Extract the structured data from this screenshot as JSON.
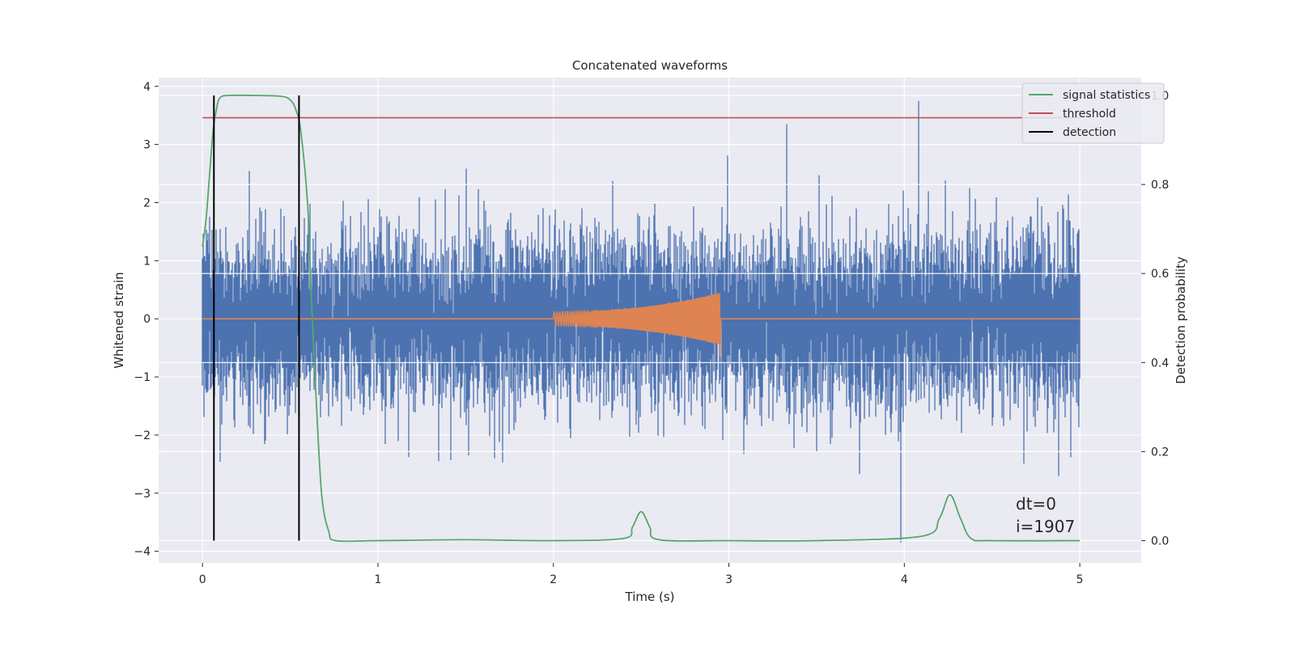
{
  "chart_data": {
    "type": "line",
    "title": "Concatenated waveforms",
    "xlabel": "Time (s)",
    "ylabel_left": "Whitened strain",
    "ylabel_right": "Detection probability",
    "xlim": [
      -0.25,
      5.35
    ],
    "ylim_left": [
      -4.2,
      4.15
    ],
    "ylim_right": [
      -0.05,
      1.04
    ],
    "x_ticks": [
      0,
      1,
      2,
      3,
      4,
      5
    ],
    "y_left_ticks": [
      -4,
      -3,
      -2,
      -1,
      0,
      1,
      2,
      3,
      4
    ],
    "y_right_ticks": [
      0.0,
      0.2,
      0.4,
      0.6,
      0.8,
      1.0
    ],
    "grid": true,
    "legend_position": "top-right",
    "legend": [
      "signal statistics",
      "threshold",
      "detection"
    ],
    "colors": {
      "noise": "#4c72b0",
      "injected_signal": "#dd8452",
      "signal_statistics": "#55a868",
      "threshold": "#c44e52",
      "detection": "#000000",
      "background": "#eaeaf2",
      "grid": "#ffffff"
    },
    "series": [
      {
        "name": "signal statistics",
        "axis": "right",
        "x": [
          0.0,
          0.02,
          0.04,
          0.06,
          0.08,
          0.1,
          0.15,
          0.3,
          0.45,
          0.5,
          0.53,
          0.56,
          0.6,
          0.62,
          0.65,
          0.68,
          0.72,
          0.76,
          1.0,
          1.5,
          2.0,
          2.4,
          2.45,
          2.5,
          2.55,
          2.6,
          3.0,
          3.5,
          4.1,
          4.2,
          4.26,
          4.32,
          4.38,
          4.5,
          5.0
        ],
        "y": [
          0.66,
          0.72,
          0.82,
          0.92,
          0.97,
          0.995,
          1.0,
          1.0,
          0.998,
          0.99,
          0.97,
          0.92,
          0.75,
          0.55,
          0.3,
          0.1,
          0.02,
          0.0,
          0.0,
          0.002,
          0.0,
          0.005,
          0.03,
          0.065,
          0.03,
          0.002,
          0.0,
          0.0,
          0.01,
          0.05,
          0.103,
          0.05,
          0.005,
          0.0,
          0.0
        ]
      },
      {
        "name": "threshold",
        "axis": "right",
        "x": [
          0.0,
          5.0
        ],
        "y": [
          0.95,
          0.95
        ]
      },
      {
        "name": "detection",
        "axis": "right",
        "x": [
          0.065,
          0.55
        ],
        "y_range": [
          0.0,
          1.0
        ]
      }
    ],
    "noise_envelope": {
      "axis": "left",
      "x_range": [
        0.0,
        5.0
      ],
      "typical_peak_abs": 2.2,
      "max_value": 3.75,
      "min_value": -3.85
    },
    "injected_signal": {
      "axis": "left",
      "x_range": [
        2.0,
        2.95
      ],
      "amplitude_start": 0.12,
      "amplitude_end": 0.45
    },
    "annotations": [
      "dt=0",
      "i=1907"
    ]
  }
}
